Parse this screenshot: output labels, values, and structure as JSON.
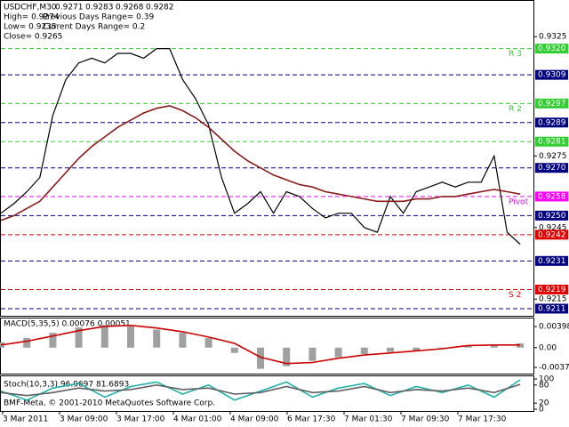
{
  "chart_data": [
    {
      "type": "line",
      "title": "USDCHF,M30",
      "ohlc": [
        0.9271,
        0.9283,
        0.9268,
        0.9282
      ],
      "annotations": [
        "High= 0.9274",
        "Previous Days Range= 0.39",
        "Low= 0.9235",
        "Current Days Range= 0.2",
        "Close= 0.9265"
      ],
      "ylim": [
        0.9208,
        0.934
      ],
      "yticks": [
        {
          "value": 0.9325,
          "label": "0.9325"
        },
        {
          "value": 0.9275,
          "label": "0.9275"
        },
        {
          "value": 0.9245,
          "label": "0.9245"
        },
        {
          "value": 0.9215,
          "label": "0.9215"
        }
      ],
      "levels": [
        {
          "value": 0.932,
          "label": "0.9320",
          "color": "#32cd32",
          "name": "R 3"
        },
        {
          "value": 0.9309,
          "label": "0.9309",
          "color": "#000080"
        },
        {
          "value": 0.9297,
          "label": "0.9297",
          "color": "#32cd32",
          "name": "R 2"
        },
        {
          "value": 0.9289,
          "label": "0.9289",
          "color": "#000080"
        },
        {
          "value": 0.9281,
          "label": "0.9281",
          "color": "#32cd32"
        },
        {
          "value": 0.927,
          "label": "0.9270",
          "color": "#000080"
        },
        {
          "value": 0.9258,
          "label": "0.9258",
          "color": "#ff00ff",
          "name": "Pivot"
        },
        {
          "value": 0.925,
          "label": "0.9250",
          "color": "#000080"
        },
        {
          "value": 0.9242,
          "label": "0.9242",
          "color": "#e00000"
        },
        {
          "value": 0.9231,
          "label": "0.9231",
          "color": "#000080"
        },
        {
          "value": 0.9219,
          "label": "0.9219",
          "color": "#e00000",
          "name": "S 2"
        },
        {
          "value": 0.9211,
          "label": "0.9211",
          "color": "#000080"
        }
      ],
      "xtick_labels": [
        "3 Mar 2011",
        "3 Mar 09:00",
        "3 Mar 17:00",
        "4 Mar 01:00",
        "4 Mar 09:00",
        "6 Mar 17:30",
        "7 Mar 01:30",
        "7 Mar 09:30",
        "7 Mar 17:30"
      ],
      "series": [
        {
          "name": "Close",
          "color": "#000000",
          "values": [
            0.9251,
            0.9255,
            0.926,
            0.9266,
            0.9292,
            0.9307,
            0.9314,
            0.9316,
            0.9314,
            0.9318,
            0.9318,
            0.9316,
            0.932,
            0.932,
            0.9307,
            0.9299,
            0.9288,
            0.9266,
            0.9251,
            0.9255,
            0.926,
            0.9251,
            0.926,
            0.9258,
            0.9253,
            0.9249,
            0.9251,
            0.9251,
            0.9245,
            0.9243,
            0.9258,
            0.9251,
            0.926,
            0.9262,
            0.9264,
            0.9262,
            0.9264,
            0.9264,
            0.9275,
            0.9243,
            0.9238
          ]
        },
        {
          "name": "MA",
          "color": "#8b1a1a",
          "values": [
            0.9248,
            0.925,
            0.9253,
            0.9256,
            0.9262,
            0.9268,
            0.9274,
            0.9279,
            0.9283,
            0.9287,
            0.929,
            0.9293,
            0.9295,
            0.9296,
            0.9294,
            0.9291,
            0.9287,
            0.9282,
            0.9277,
            0.9273,
            0.927,
            0.9267,
            0.9265,
            0.9263,
            0.9262,
            0.926,
            0.9259,
            0.9258,
            0.9257,
            0.9256,
            0.9256,
            0.9256,
            0.9257,
            0.9257,
            0.9258,
            0.9258,
            0.9259,
            0.926,
            0.9261,
            0.926,
            0.9259
          ]
        }
      ]
    },
    {
      "type": "macd",
      "title": "MACD(5,35,5) 0.00076 0.00051",
      "ylim": [
        -0.0049,
        0.0055
      ],
      "yticks": [
        0.00398,
        {
          "value": 0,
          "label": "0.00"
        },
        -0.00373
      ],
      "series": [
        {
          "name": "MACD",
          "color": "#a0a0a0",
          "values": [
            0.001,
            0.0018,
            0.0028,
            0.0038,
            0.0042,
            0.004,
            0.0034,
            0.0028,
            0.0018,
            -0.001,
            -0.004,
            -0.0035,
            -0.0025,
            -0.0018,
            -0.0012,
            -0.0008,
            -0.0006,
            -0.0002,
            0.0004,
            0.0006,
            0.0008
          ]
        },
        {
          "name": "Signal",
          "color": "#cc0000",
          "values": [
            0.0005,
            0.0012,
            0.0022,
            0.0032,
            0.004,
            0.0042,
            0.0037,
            0.003,
            0.002,
            0.0008,
            -0.0018,
            -0.003,
            -0.0028,
            -0.002,
            -0.0014,
            -0.001,
            -0.0006,
            -0.0002,
            0.0004,
            0.0005,
            0.0005
          ]
        }
      ]
    },
    {
      "type": "line",
      "title": "Stoch(10,3,3) 96.9697 81.6893",
      "annotation": "BMF-Meta, © 2001-2010 MetaQuotes Software Corp.",
      "ylim": [
        0,
        100
      ],
      "yticks": [
        100,
        80,
        20,
        0
      ],
      "series": [
        {
          "name": "Main",
          "color": "#20b2aa",
          "values": [
            60,
            30,
            70,
            85,
            40,
            75,
            90,
            50,
            80,
            30,
            60,
            90,
            40,
            70,
            85,
            45,
            75,
            55,
            80,
            40,
            97
          ]
        },
        {
          "name": "Signal",
          "color": "#606060",
          "values": [
            55,
            45,
            55,
            70,
            60,
            65,
            80,
            65,
            70,
            50,
            55,
            75,
            55,
            60,
            75,
            55,
            65,
            60,
            70,
            55,
            82
          ]
        }
      ]
    }
  ]
}
